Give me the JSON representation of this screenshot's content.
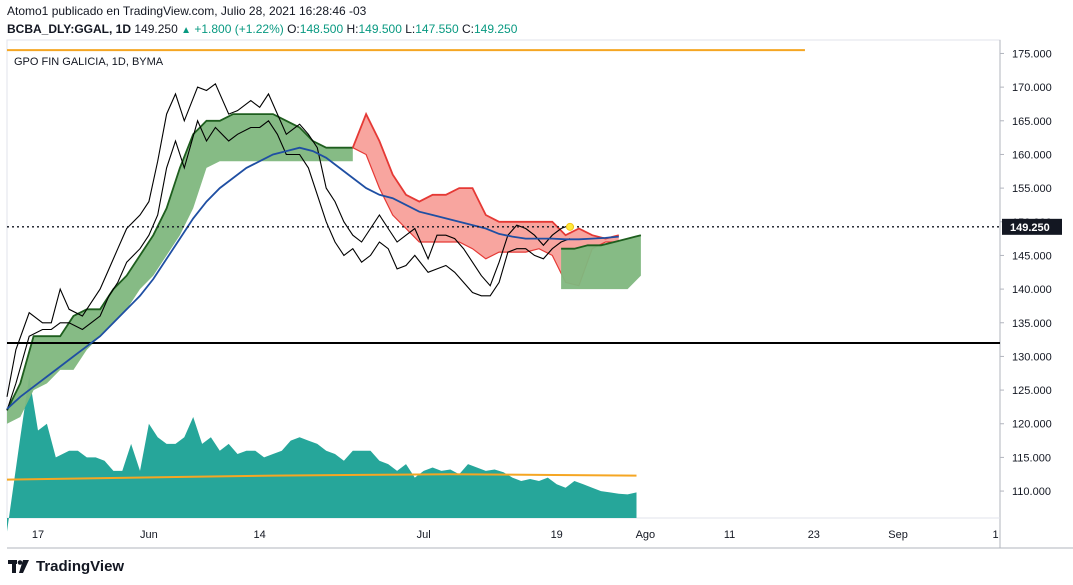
{
  "header": {
    "line1": "Atomo1 publicado en TradingView.com, Julio 28, 2021 16:28:46 -03",
    "symbol": "BCBA_DLY:GGAL, 1D",
    "last": "149.250",
    "arrow": "▲",
    "change": "+1.800 (+1.22%)",
    "o_label": "O:",
    "o_val": "148.500",
    "h_label": "H:",
    "h_val": "149.500",
    "l_label": "L:",
    "l_val": "147.550",
    "c_label": "C:",
    "c_val": "149.250"
  },
  "brand": {
    "name": "TradingView",
    "icon": "tradingview-logo-icon"
  },
  "colors": {
    "ichimoku_green": "#7fb77e",
    "ichimoku_green_line": "#1e5e1e",
    "ichimoku_red": "#f8a09a",
    "ichimoku_red_line": "#e53935",
    "ma_blue": "#1f4fa3",
    "volume": "#26a69a",
    "volume_ma": "#f5a623",
    "resistance": "#f5a623",
    "support": "#000000",
    "last_price_bg": "#131722"
  },
  "chart_data": {
    "type": "line",
    "title": "GPO FIN GALICIA, 1D, BYMA",
    "ylim": [
      106,
      177
    ],
    "y_ticks": [
      "175.000",
      "170.000",
      "165.000",
      "160.000",
      "155.000",
      "150.000",
      "145.000",
      "140.000",
      "135.000",
      "130.000",
      "125.000",
      "120.000",
      "115.000",
      "110.000"
    ],
    "y_tick_values": [
      175,
      170,
      165,
      160,
      155,
      150,
      145,
      140,
      135,
      130,
      125,
      120,
      115,
      110
    ],
    "x_ticks": [
      "17",
      "Jun",
      "14",
      "Jul",
      "19",
      "Ago",
      "11",
      "23",
      "Sep",
      "1"
    ],
    "x_tick_index": [
      7,
      32,
      57,
      94,
      124,
      144,
      163,
      182,
      201,
      223
    ],
    "x_range": [
      0,
      224
    ],
    "last_price_label": "149.250",
    "last_price": 149.25,
    "horizontal_levels": [
      {
        "value": 175.5,
        "color": "resistance",
        "start": 0,
        "end": 180
      },
      {
        "value": 132.0,
        "color": "support",
        "start": 0,
        "end": 224
      }
    ],
    "series": [
      {
        "kind": "price",
        "x": [
          0,
          2,
          5,
          8,
          10,
          12,
          14,
          17,
          19,
          21,
          23,
          25,
          27,
          30,
          32,
          34,
          36,
          38,
          40,
          43,
          45,
          47,
          50,
          52,
          55,
          57,
          59,
          61,
          63,
          66,
          68,
          70,
          72,
          74,
          76,
          78,
          80,
          82,
          84,
          86,
          88,
          90,
          92,
          95,
          97,
          99,
          101,
          103,
          105,
          107,
          109,
          111,
          113,
          115,
          117,
          119,
          121,
          123,
          125,
          127,
          129,
          131,
          133,
          135,
          137,
          139
        ],
        "high": [
          124,
          131,
          136.5,
          135,
          135,
          140,
          137,
          136,
          138,
          140,
          143,
          146,
          149,
          151,
          153,
          159,
          166,
          169,
          165,
          170,
          169.5,
          170.5,
          166,
          166.5,
          168,
          167,
          169,
          166,
          163,
          164.5,
          163,
          161,
          155,
          153,
          150,
          148,
          147,
          149,
          151,
          149,
          147,
          148,
          149,
          144.5,
          148,
          148,
          147.5,
          146,
          144,
          142,
          140.5,
          144,
          148,
          149.5,
          149,
          148,
          146.5,
          148,
          149,
          149.5,
          null,
          null,
          null,
          null,
          null,
          null
        ],
        "low": [
          122,
          126,
          133,
          134,
          134,
          135,
          135,
          134,
          135,
          136,
          139,
          141,
          144,
          146,
          148,
          151,
          158,
          162,
          158,
          165,
          162,
          164,
          162,
          163,
          164,
          164,
          165,
          163,
          160,
          160,
          158,
          154,
          150,
          147,
          145,
          146,
          144,
          145,
          147,
          146,
          143,
          143.5,
          145,
          142.5,
          143,
          143.5,
          142.5,
          141,
          139.5,
          139,
          139,
          141,
          145.5,
          146,
          146,
          145,
          144.5,
          146,
          147,
          147.5,
          null,
          null,
          null,
          null,
          null,
          null
        ],
        "close": [
          123,
          130,
          136,
          135,
          135,
          139,
          136,
          135,
          137,
          139,
          142,
          145,
          148,
          150,
          152,
          158,
          165,
          168,
          161,
          169,
          163,
          166,
          163,
          164,
          166,
          165,
          167,
          164,
          161,
          163,
          159,
          155,
          150,
          147,
          146,
          146.5,
          145,
          147,
          150,
          147,
          145,
          146,
          147,
          143,
          147,
          147,
          146,
          144,
          141,
          140,
          140.5,
          143,
          147,
          148,
          149,
          147,
          145,
          147.5,
          148,
          149.25,
          null,
          null,
          null,
          null,
          null,
          null
        ]
      },
      {
        "kind": "ma",
        "name": "",
        "x": [
          0,
          3,
          6,
          9,
          12,
          15,
          18,
          21,
          24,
          27,
          30,
          33,
          36,
          39,
          42,
          45,
          48,
          51,
          54,
          57,
          60,
          63,
          66,
          69,
          72,
          75,
          78,
          81,
          84,
          87,
          90,
          93,
          96,
          99,
          102,
          105,
          108,
          111,
          114,
          117,
          120,
          123,
          126,
          129,
          132,
          135,
          138
        ],
        "values": [
          122.2,
          124,
          125.5,
          127,
          128.5,
          130,
          131.5,
          133,
          135,
          137,
          139,
          141.5,
          144.5,
          147.5,
          150.5,
          153,
          155,
          156.5,
          158,
          159,
          160,
          160.5,
          161,
          160.5,
          159.5,
          158,
          156.5,
          155,
          154,
          153.5,
          152.5,
          151.5,
          151,
          150.5,
          150,
          149.5,
          149,
          148.2,
          147.8,
          147.5,
          147.5,
          147.5,
          147.4,
          147.4,
          147.5,
          147.6,
          147.8
        ]
      }
    ],
    "cloud": [
      {
        "color": "green",
        "x": [
          0,
          3,
          6,
          9,
          12,
          15,
          18,
          21,
          24,
          27,
          30,
          33,
          36,
          39,
          42,
          45,
          48,
          51,
          54,
          57,
          60,
          63,
          66,
          69,
          72,
          75,
          78
        ],
        "upper": [
          122,
          126,
          133,
          133,
          133,
          136,
          137,
          137,
          140,
          142,
          145,
          148,
          152,
          158,
          163,
          165,
          165,
          166,
          166,
          166,
          166,
          165,
          164,
          162,
          161,
          161,
          161
        ],
        "lower": [
          120,
          121,
          125,
          126,
          128,
          128,
          131,
          133,
          135,
          137,
          140,
          142,
          145,
          148,
          152,
          158,
          159,
          159,
          159,
          159,
          159,
          159,
          159,
          159,
          159,
          159,
          159
        ]
      },
      {
        "color": "red",
        "x": [
          78,
          81,
          84,
          87,
          90,
          93,
          96,
          99,
          102,
          105,
          108,
          111,
          114,
          117,
          120,
          123,
          126,
          129,
          132,
          135,
          138
        ],
        "upper": [
          161,
          166,
          162,
          157,
          154,
          153,
          154,
          154,
          155,
          155,
          151,
          150,
          150,
          150,
          150,
          150,
          148,
          149,
          148,
          147.5,
          148
        ],
        "lower": [
          161,
          160,
          155,
          151,
          149,
          147,
          147,
          147,
          147,
          146,
          144.5,
          145.5,
          145.5,
          145.5,
          146,
          145,
          141,
          140.5,
          146,
          147,
          147
        ]
      },
      {
        "color": "green",
        "x": [
          125,
          128,
          131,
          134,
          137,
          140,
          143
        ],
        "upper": [
          146,
          146,
          146.5,
          146.5,
          147,
          147.5,
          148
        ],
        "lower": [
          140,
          140,
          140,
          140,
          140,
          140,
          142
        ]
      }
    ],
    "volume": {
      "x": [
        0,
        3,
        5,
        7,
        9,
        11,
        14,
        16,
        18,
        20,
        22,
        24,
        26,
        28,
        30,
        32,
        34,
        36,
        38,
        40,
        42,
        44,
        46,
        48,
        50,
        52,
        54,
        56,
        58,
        60,
        62,
        64,
        66,
        68,
        70,
        72,
        74,
        76,
        78,
        80,
        82,
        84,
        86,
        88,
        90,
        92,
        94,
        96,
        98,
        100,
        102,
        104,
        106,
        108,
        110,
        112,
        114,
        116,
        118,
        120,
        122,
        124,
        126,
        128,
        130,
        132,
        134,
        136,
        138,
        140,
        142
      ],
      "values": [
        104,
        118,
        127,
        119,
        120,
        115,
        116,
        116,
        115,
        115,
        114.5,
        113,
        113,
        117,
        113,
        120,
        118,
        117,
        117,
        118,
        121,
        117,
        118,
        116,
        117,
        115.5,
        116,
        116,
        115,
        115.5,
        116,
        117.5,
        118,
        117.5,
        117,
        116,
        115.5,
        114.5,
        116,
        116,
        116,
        114.5,
        114,
        113,
        114,
        112,
        113,
        113.5,
        113,
        113.2,
        112.5,
        114,
        113.5,
        113,
        113.2,
        112.8,
        112,
        111.5,
        111.8,
        111.5,
        112,
        111,
        110.5,
        111.5,
        111,
        110.5,
        110,
        109.8,
        109.6,
        109.5,
        109.8
      ],
      "ma_x": [
        0,
        20,
        40,
        60,
        80,
        100,
        120,
        142
      ],
      "ma_values": [
        111.7,
        111.9,
        112.1,
        112.3,
        112.4,
        112.5,
        112.4,
        112.3
      ]
    }
  }
}
